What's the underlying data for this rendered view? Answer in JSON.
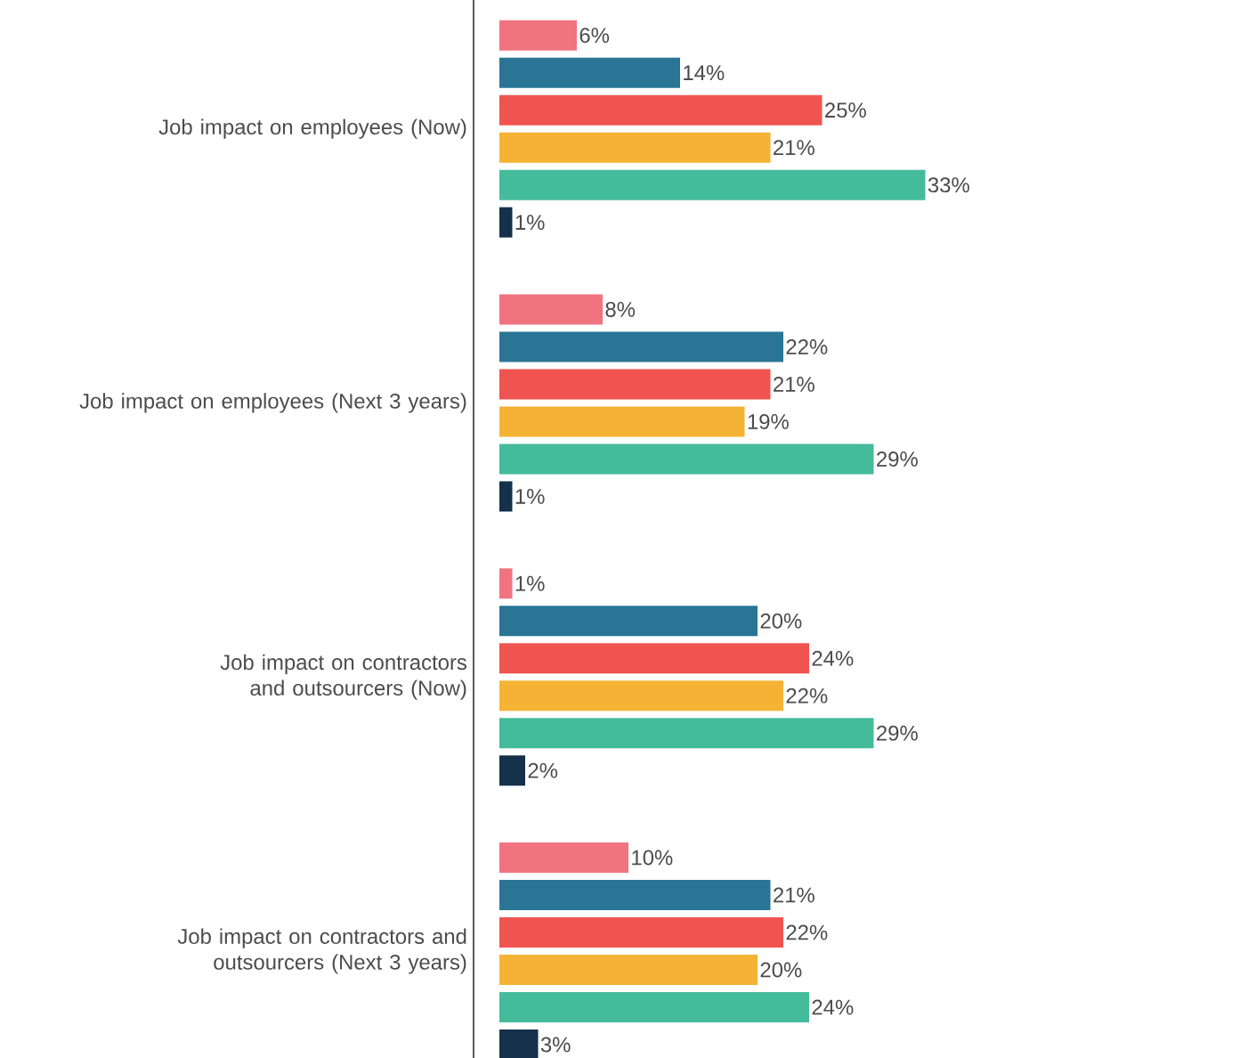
{
  "chart_data": {
    "type": "bar",
    "orientation": "horizontal",
    "categories": [
      "Job impact on employees (Now)",
      "Job impact on employees (Next 3 years)",
      "Job impact on contractors and outsourcers (Now)",
      "Job impact on contractors and outsourcers (Next 3 years)"
    ],
    "series": [
      {
        "color": "#f07480",
        "values": [
          6,
          8,
          1,
          10
        ],
        "value_labels": [
          "6%",
          "8%",
          "1%",
          "10%"
        ]
      },
      {
        "color": "#2a7595",
        "values": [
          14,
          22,
          20,
          21
        ],
        "value_labels": [
          "14%",
          "22%",
          "20%",
          "21%"
        ]
      },
      {
        "color": "#f05450",
        "values": [
          25,
          21,
          24,
          22
        ],
        "value_labels": [
          "25%",
          "21%",
          "24%",
          "22%"
        ]
      },
      {
        "color": "#f5b335",
        "values": [
          21,
          19,
          22,
          20
        ],
        "value_labels": [
          "21%",
          "19%",
          "22%",
          "20%"
        ]
      },
      {
        "color": "#44bc9c",
        "values": [
          33,
          29,
          29,
          24
        ],
        "value_labels": [
          "33%",
          "29%",
          "29%",
          "24%"
        ]
      },
      {
        "color": "#14304a",
        "values": [
          1,
          1,
          2,
          3
        ],
        "value_labels": [
          "1%",
          "1%",
          "2%",
          "3%"
        ]
      }
    ]
  }
}
